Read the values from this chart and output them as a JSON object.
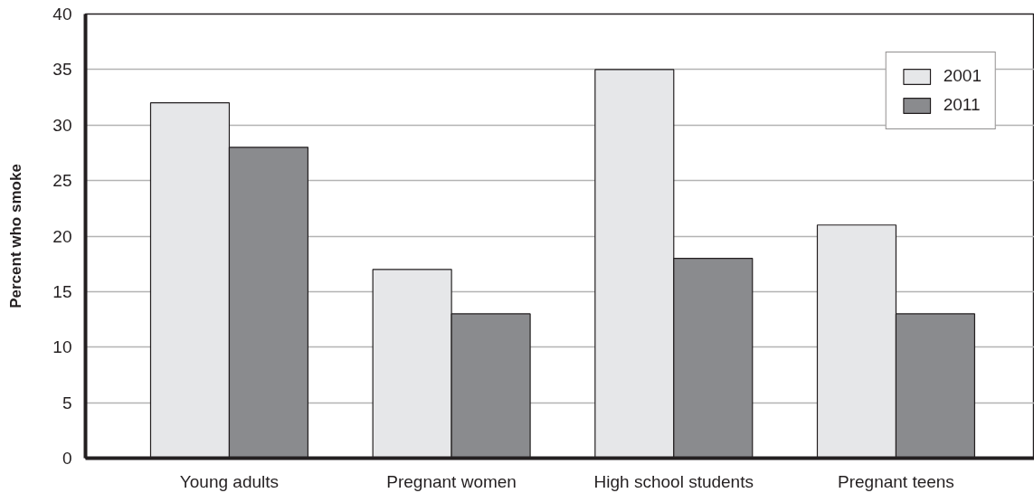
{
  "chart_data": {
    "type": "bar",
    "ylabel": "Percent who smoke",
    "categories": [
      "Young adults",
      "Pregnant women",
      "High school students",
      "Pregnant teens"
    ],
    "series": [
      {
        "name": "2001",
        "color": "#e6e7e9",
        "values": [
          32,
          17,
          35,
          21
        ]
      },
      {
        "name": "2011",
        "color": "#8a8b8e",
        "values": [
          28,
          13,
          18,
          13
        ]
      }
    ],
    "ylim": [
      0,
      40
    ],
    "yticks": [
      0,
      5,
      10,
      15,
      20,
      25,
      30,
      35,
      40
    ],
    "grid": "y",
    "legend": "top right"
  }
}
